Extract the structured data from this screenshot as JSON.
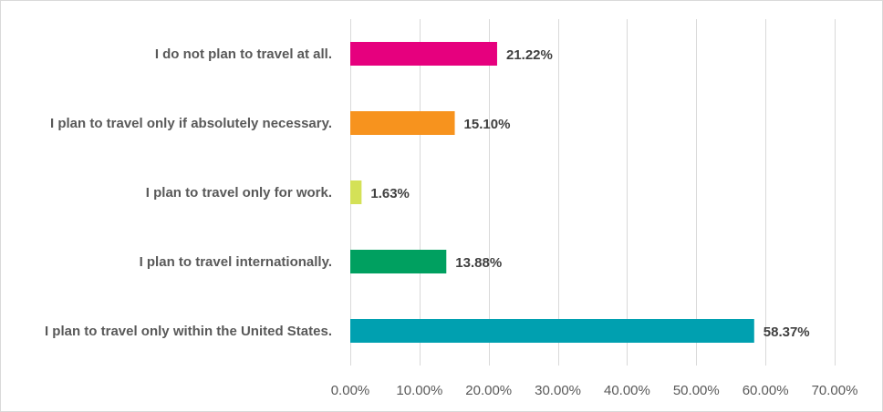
{
  "chart_data": {
    "type": "bar",
    "orientation": "horizontal",
    "title": "",
    "xlabel": "",
    "ylabel": "",
    "categories": [
      "I do not plan to travel at all.",
      "I plan to travel only if absolutely necessary.",
      "I plan to travel only for work.",
      "I plan to travel internationally.",
      "I plan to travel only within the United States."
    ],
    "values": [
      21.22,
      15.1,
      1.63,
      13.88,
      58.37
    ],
    "value_labels": [
      "21.22%",
      "15.10%",
      "1.63%",
      "13.88%",
      "58.37%"
    ],
    "colors": [
      "#e6007e",
      "#f7931e",
      "#d4e157",
      "#00a060",
      "#00a0b0"
    ],
    "xlim": [
      0,
      70
    ],
    "x_ticks": [
      0,
      10,
      20,
      30,
      40,
      50,
      60,
      70
    ],
    "x_tick_labels": [
      "0.00%",
      "10.00%",
      "20.00%",
      "30.00%",
      "40.00%",
      "50.00%",
      "60.00%",
      "70.00%"
    ],
    "grid": true,
    "legend": "none"
  }
}
